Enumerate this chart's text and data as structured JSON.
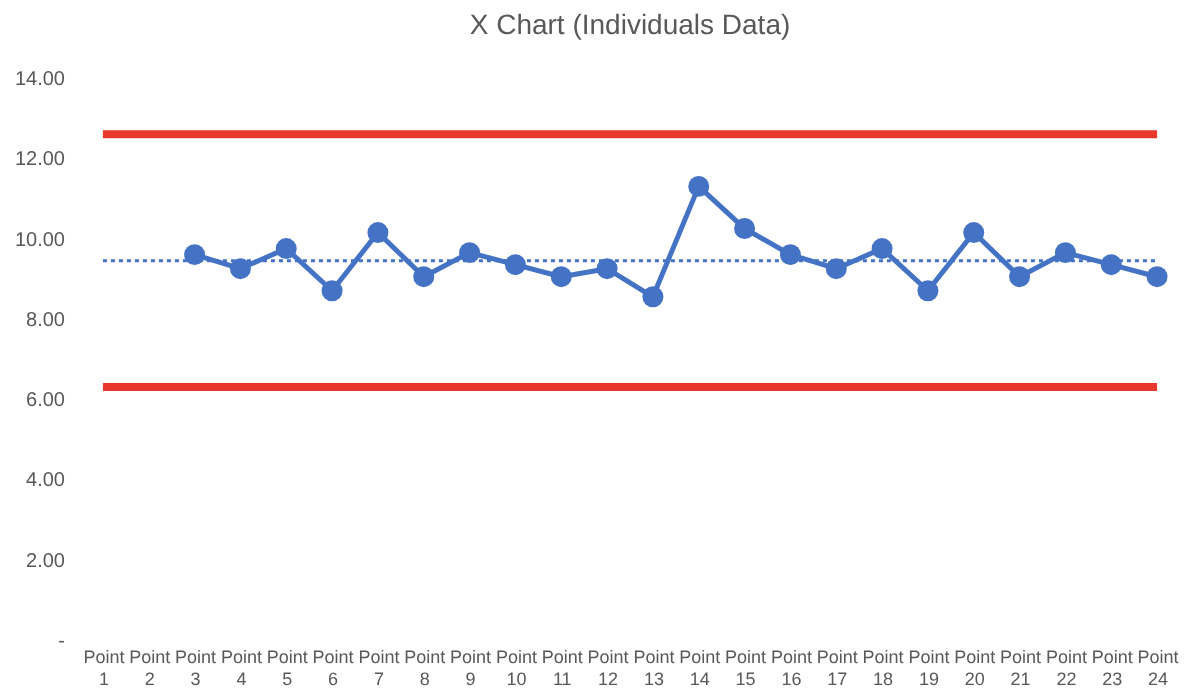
{
  "chart_data": {
    "type": "line",
    "title": "X Chart (Individuals Data)",
    "categories": [
      "Point 1",
      "Point 2",
      "Point 3",
      "Point 4",
      "Point 5",
      "Point 6",
      "Point 7",
      "Point 8",
      "Point 9",
      "Point 10",
      "Point 11",
      "Point 12",
      "Point 13",
      "Point 14",
      "Point 15",
      "Point 16",
      "Point 17",
      "Point 18",
      "Point 19",
      "Point 20",
      "Point 21",
      "Point 22",
      "Point 23",
      "Point 24"
    ],
    "series": [
      {
        "color": "#4472c4",
        "values": [
          null,
          null,
          9.6,
          9.25,
          9.75,
          8.7,
          10.15,
          9.05,
          9.65,
          9.35,
          9.05,
          9.25,
          8.55,
          11.3,
          10.25,
          9.6,
          9.25,
          9.75,
          8.7,
          10.15,
          9.05,
          9.65,
          9.35,
          9.05
        ]
      }
    ],
    "ylim": [
      0,
      14
    ],
    "yticks": [
      {
        "value": 0,
        "label": "-"
      },
      {
        "value": 2,
        "label": "2.00"
      },
      {
        "value": 4,
        "label": "4.00"
      },
      {
        "value": 6,
        "label": "6.00"
      },
      {
        "value": 8,
        "label": "8.00"
      },
      {
        "value": 10,
        "label": "10.00"
      },
      {
        "value": 12,
        "label": "12.00"
      },
      {
        "value": 14,
        "label": "14.00"
      }
    ],
    "ref_lines": [
      {
        "axis": "y",
        "value": 12.6,
        "color": "#e8382c",
        "line_style": "solid"
      },
      {
        "axis": "y",
        "value": 6.3,
        "color": "#e8382c",
        "line_style": "solid"
      },
      {
        "axis": "y",
        "value": 9.45,
        "color": "#4472c4",
        "line_style": "dotted"
      }
    ],
    "marker": "circle",
    "line_style": "solid",
    "grid": false
  }
}
